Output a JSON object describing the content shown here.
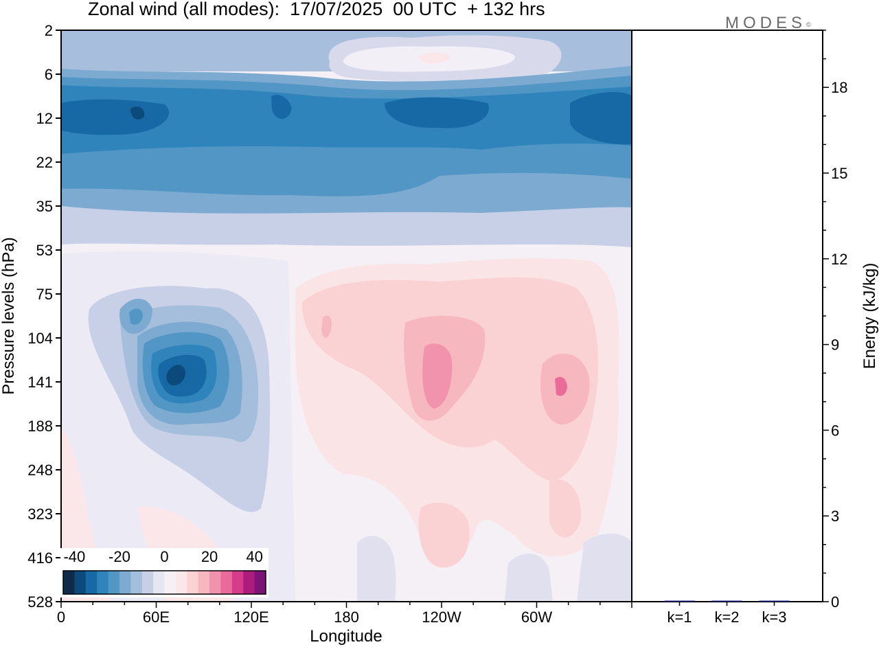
{
  "header": {
    "title": "Zonal wind (all modes):  17/07/2025  00 UTC  + 132 hrs",
    "logo": "MODES",
    "logo_mark": "©"
  },
  "colors": {
    "scale": [
      "#102a4a",
      "#0c4a7c",
      "#1769a5",
      "#2f84bb",
      "#5296c6",
      "#7caad0",
      "#a5bedb",
      "#c7d0e6",
      "#e6e6f2",
      "#f6f0f5",
      "#fbe7e9",
      "#fad2d4",
      "#f7b7bf",
      "#f293ad",
      "#ea6a9a",
      "#d73c8b",
      "#ad1c7d",
      "#7c1478",
      "#4a1060"
    ]
  },
  "chart_data": [
    {
      "type": "heatmap",
      "title": "Zonal wind (all modes):  17/07/2025  00 UTC  + 132 hrs",
      "xlabel": "Longitude",
      "ylabel": "Pressure levels (hPa)",
      "x_ticks": [
        "0",
        "60E",
        "120E",
        "180",
        "120W",
        "60W"
      ],
      "x_tick_values": [
        0,
        60,
        120,
        180,
        240,
        300
      ],
      "xlim": [
        0,
        360
      ],
      "y_ticks": [
        "2",
        "6",
        "12",
        "22",
        "35",
        "53",
        "75",
        "104",
        "141",
        "188",
        "248",
        "323",
        "416",
        "528"
      ],
      "colorbar": {
        "tick_labels": [
          "-40",
          "-20",
          "0",
          "20",
          "40"
        ],
        "tick_values": [
          -40,
          -20,
          0,
          20,
          40
        ],
        "range": [
          -45,
          45
        ],
        "step": 5
      },
      "features": [
        {
          "desc": "upper westerly maximum",
          "lon": 225,
          "level": "4",
          "value": 10
        },
        {
          "desc": "stratospheric easterly band",
          "lon_range": [
            0,
            360
          ],
          "levels": [
            "12",
            "22"
          ],
          "value": -30
        },
        {
          "desc": "easterly jet core",
          "lon": 70,
          "level": "141",
          "value": -40
        },
        {
          "desc": "westerly core",
          "lon": 240,
          "level": "141",
          "value": 20
        },
        {
          "desc": "westerly core",
          "lon": 315,
          "level": "141",
          "value": 20
        }
      ]
    },
    {
      "type": "bar",
      "categories": [
        "k=1",
        "k=2",
        "k=3"
      ],
      "values": [
        0.03,
        0.01,
        0.01
      ],
      "ylabel": "Energy (kJ/kg)",
      "ylim": [
        0,
        20
      ],
      "y_ticks": [
        0,
        3,
        6,
        9,
        12,
        15,
        18
      ],
      "bar_color": "#1a1a80"
    }
  ]
}
